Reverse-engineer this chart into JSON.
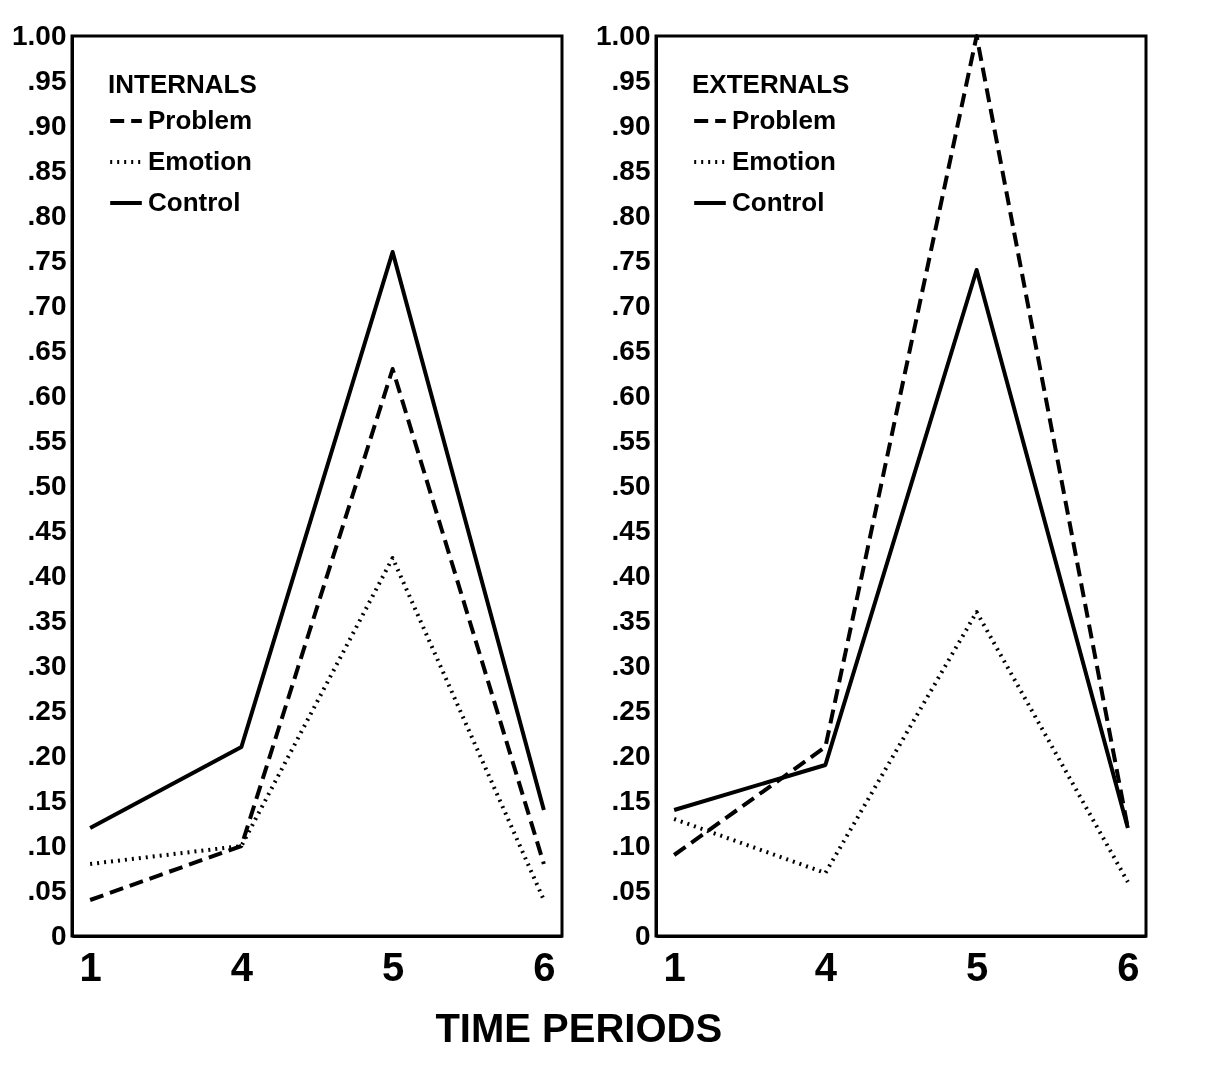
{
  "chart_data": [
    {
      "type": "line",
      "xlabel": "TIME PERIODS",
      "legend_title": "INTERNALS",
      "legend": "top left",
      "grid": false,
      "categories": [
        "1",
        "4",
        "5",
        "6"
      ],
      "ylim": [
        0,
        1
      ],
      "yticks": [
        0,
        {
          "value": 0.05,
          "label": ".05"
        },
        {
          "value": 0.1,
          "label": ".10"
        },
        {
          "value": 0.15,
          "label": ".15"
        },
        {
          "value": 0.2,
          "label": ".20"
        },
        {
          "value": 0.25,
          "label": ".25"
        },
        {
          "value": 0.3,
          "label": ".30"
        },
        {
          "value": 0.35,
          "label": ".35"
        },
        {
          "value": 0.4,
          "label": ".40"
        },
        {
          "value": 0.45,
          "label": ".45"
        },
        {
          "value": 0.5,
          "label": ".50"
        },
        {
          "value": 0.55,
          "label": ".55"
        },
        {
          "value": 0.6,
          "label": ".60"
        },
        {
          "value": 0.65,
          "label": ".65"
        },
        {
          "value": 0.7,
          "label": ".70"
        },
        {
          "value": 0.75,
          "label": ".75"
        },
        {
          "value": 0.8,
          "label": ".80"
        },
        {
          "value": 0.85,
          "label": ".85"
        },
        {
          "value": 0.9,
          "label": ".90"
        },
        {
          "value": 0.95,
          "label": ".95"
        },
        {
          "value": 1,
          "label": "1.00"
        }
      ],
      "series": [
        {
          "name": "Problem",
          "color": "#000000",
          "line_style": "dashed",
          "values": [
            0.04,
            0.1,
            0.63,
            0.08
          ]
        },
        {
          "name": "Emotion",
          "color": "#000000",
          "line_style": "dotted",
          "values": [
            0.08,
            0.1,
            0.42,
            0.04
          ]
        },
        {
          "name": "Control",
          "color": "#000000",
          "line_style": "solid",
          "values": [
            0.12,
            0.21,
            0.76,
            0.14
          ]
        }
      ]
    },
    {
      "type": "line",
      "legend_title": "EXTERNALS",
      "legend": "top left",
      "grid": false,
      "categories": [
        "1",
        "4",
        "5",
        "6"
      ],
      "ylim": [
        0,
        1
      ],
      "yticks": [
        0,
        {
          "value": 0.05,
          "label": ".05"
        },
        {
          "value": 0.1,
          "label": ".10"
        },
        {
          "value": 0.15,
          "label": ".15"
        },
        {
          "value": 0.2,
          "label": ".20"
        },
        {
          "value": 0.25,
          "label": ".25"
        },
        {
          "value": 0.3,
          "label": ".30"
        },
        {
          "value": 0.35,
          "label": ".35"
        },
        {
          "value": 0.4,
          "label": ".40"
        },
        {
          "value": 0.45,
          "label": ".45"
        },
        {
          "value": 0.5,
          "label": ".50"
        },
        {
          "value": 0.55,
          "label": ".55"
        },
        {
          "value": 0.6,
          "label": ".60"
        },
        {
          "value": 0.65,
          "label": ".65"
        },
        {
          "value": 0.7,
          "label": ".70"
        },
        {
          "value": 0.75,
          "label": ".75"
        },
        {
          "value": 0.8,
          "label": ".80"
        },
        {
          "value": 0.85,
          "label": ".85"
        },
        {
          "value": 0.9,
          "label": ".90"
        },
        {
          "value": 0.95,
          "label": ".95"
        },
        {
          "value": 1,
          "label": "1.00"
        }
      ],
      "series": [
        {
          "name": "Problem",
          "color": "#000000",
          "line_style": "dashed",
          "values": [
            0.09,
            0.21,
            1.0,
            0.12
          ]
        },
        {
          "name": "Emotion",
          "color": "#000000",
          "line_style": "dotted",
          "values": [
            0.13,
            0.07,
            0.36,
            0.06
          ]
        },
        {
          "name": "Control",
          "color": "#000000",
          "line_style": "solid",
          "values": [
            0.14,
            0.19,
            0.74,
            0.12
          ]
        }
      ]
    }
  ]
}
